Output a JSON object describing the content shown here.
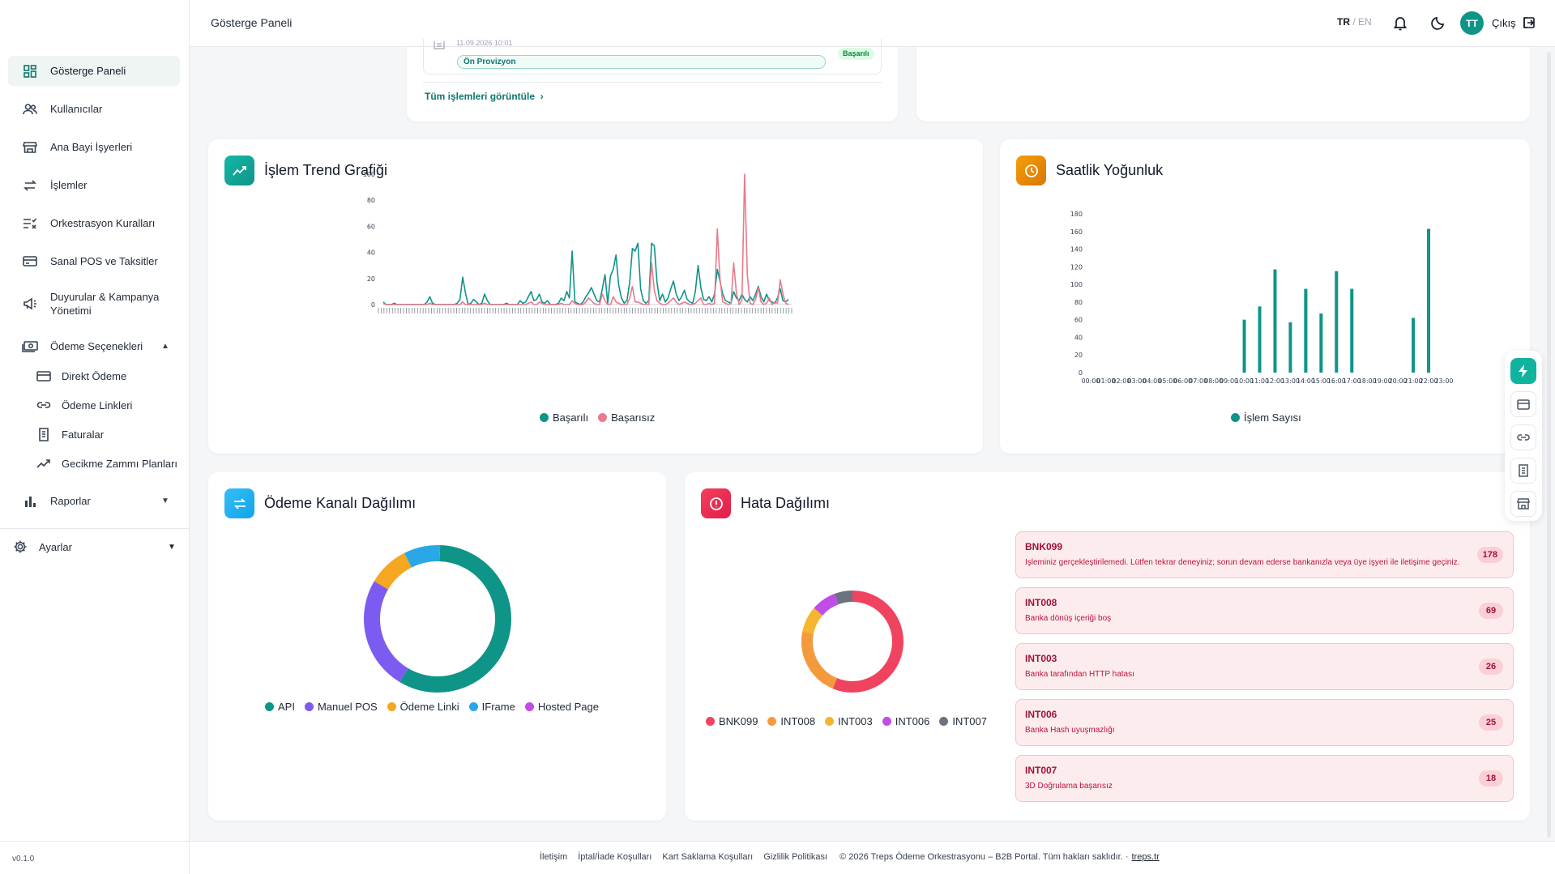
{
  "sidebar": {
    "items": [
      {
        "label": "Gösterge Paneli",
        "icon": "dashboard-icon"
      },
      {
        "label": "Kullanıcılar",
        "icon": "users-icon"
      },
      {
        "label": "Ana Bayi İşyerleri",
        "icon": "store-icon"
      },
      {
        "label": "İşlemler",
        "icon": "swap-icon"
      },
      {
        "label": "Orkestrasyon Kuralları",
        "icon": "rules-icon"
      },
      {
        "label": "Sanal POS ve Taksitler",
        "icon": "card-icon"
      },
      {
        "label": "Duyurular & Kampanya Yönetimi",
        "icon": "megaphone-icon"
      },
      {
        "label": "Ödeme Seçenekleri",
        "icon": "payments-icon"
      }
    ],
    "sub_items": [
      {
        "label": "Direkt Ödeme",
        "icon": "card-icon"
      },
      {
        "label": "Ödeme Linkleri",
        "icon": "link-icon"
      },
      {
        "label": "Faturalar",
        "icon": "invoice-icon"
      },
      {
        "label": "Gecikme Zammı Planları",
        "icon": "trend-icon"
      }
    ],
    "reports_label": "Raporlar",
    "settings_label": "Ayarlar",
    "version": "v0.1.0"
  },
  "header": {
    "title": "Gösterge Paneli",
    "lang_active": "TR",
    "lang_sep": " / ",
    "lang_other": "EN",
    "avatar": "TT",
    "logout": "Çıkış"
  },
  "recent": {
    "date": "11.09.2026 10:01",
    "type": "Ön Provizyon",
    "status": "Başarılı",
    "view_all": "Tüm işlemleri görüntüle"
  },
  "cards": {
    "trend_title": "İşlem Trend Grafiği",
    "hourly_title": "Saatlik Yoğunluk",
    "channel_title": "Ödeme Kanalı Dağılımı",
    "error_title": "Hata Dağılımı"
  },
  "colors": {
    "teal": "#0f9488",
    "pink": "#e87b8c",
    "accent": "#10b3a0"
  },
  "chart_data": [
    {
      "type": "line",
      "title": "İşlem Trend Grafiği",
      "ylim": [
        0,
        100
      ],
      "yticks": [
        0,
        20,
        40,
        60,
        80,
        100
      ],
      "series": [
        {
          "name": "Başarılı",
          "color": "#0f9488",
          "values": [
            2,
            0,
            0,
            0,
            1,
            0,
            0,
            0,
            0,
            0,
            0,
            0,
            0,
            0,
            0,
            0,
            2,
            6,
            1,
            0,
            0,
            0,
            0,
            0,
            0,
            0,
            0,
            1,
            4,
            21,
            9,
            0,
            1,
            4,
            2,
            0,
            1,
            8,
            3,
            0,
            0,
            0,
            0,
            0,
            0,
            1,
            0,
            0,
            0,
            0,
            3,
            1,
            2,
            6,
            10,
            3,
            4,
            8,
            2,
            1,
            3,
            0,
            0,
            0,
            1,
            5,
            3,
            10,
            5,
            41,
            2,
            1,
            0,
            2,
            6,
            9,
            13,
            8,
            3,
            2,
            12,
            23,
            1,
            22,
            27,
            38,
            15,
            5,
            1,
            3,
            17,
            43,
            41,
            47,
            12,
            3,
            1,
            3,
            47,
            45,
            17,
            3,
            8,
            2,
            5,
            12,
            18,
            8,
            3,
            6,
            11,
            4,
            2,
            1,
            10,
            30,
            13,
            4,
            3,
            6,
            2,
            8,
            27,
            18,
            8,
            3,
            2,
            1,
            10,
            5,
            3,
            8,
            4,
            2,
            6,
            3,
            8,
            14,
            6,
            2,
            8,
            3,
            2,
            1,
            5,
            12,
            3,
            2,
            4
          ]
        },
        {
          "name": "Başarısız",
          "color": "#e87b8c",
          "values": [
            1,
            0,
            0,
            0,
            0,
            0,
            0,
            0,
            0,
            0,
            0,
            0,
            0,
            0,
            0,
            0,
            0,
            1,
            0,
            0,
            0,
            0,
            0,
            0,
            0,
            0,
            0,
            0,
            0,
            2,
            0,
            0,
            0,
            0,
            0,
            0,
            0,
            1,
            0,
            0,
            0,
            0,
            0,
            0,
            0,
            0,
            0,
            0,
            0,
            0,
            0,
            0,
            0,
            1,
            2,
            0,
            0,
            2,
            1,
            0,
            0,
            0,
            0,
            0,
            0,
            1,
            0,
            0,
            0,
            3,
            1,
            0,
            0,
            0,
            2,
            5,
            3,
            1,
            0,
            0,
            8,
            3,
            0,
            0,
            6,
            2,
            1,
            0,
            0,
            0,
            5,
            14,
            2,
            2,
            1,
            0,
            0,
            0,
            32,
            11,
            3,
            1,
            0,
            0,
            1,
            3,
            5,
            2,
            0,
            1,
            2,
            1,
            0,
            0,
            1,
            3,
            5,
            0,
            0,
            1,
            0,
            1,
            58,
            20,
            2,
            1,
            0,
            1,
            32,
            9,
            0,
            3,
            100,
            22,
            1,
            0,
            4,
            13,
            2,
            0,
            1,
            5,
            0,
            2,
            1,
            19,
            8,
            1,
            0
          ]
        }
      ]
    },
    {
      "type": "bar",
      "title": "Saatlik Yoğunluk",
      "ylim": [
        0,
        180
      ],
      "yticks": [
        0,
        20,
        40,
        60,
        80,
        100,
        120,
        140,
        160,
        180
      ],
      "categories": [
        "00:00",
        "01:00",
        "02:00",
        "03:00",
        "04:00",
        "05:00",
        "06:00",
        "07:00",
        "08:00",
        "09:00",
        "10:00",
        "11:00",
        "12:00",
        "13:00",
        "14:00",
        "15:00",
        "16:00",
        "17:00",
        "18:00",
        "19:00",
        "20:00",
        "21:00",
        "22:00",
        "23:00"
      ],
      "series": [
        {
          "name": "İşlem Sayısı",
          "color": "#0f9488",
          "values": [
            0,
            0,
            0,
            0,
            0,
            0,
            0,
            0,
            0,
            0,
            60,
            75,
            117,
            57,
            95,
            67,
            115,
            95,
            0,
            0,
            0,
            62,
            163,
            0
          ]
        }
      ]
    },
    {
      "type": "pie",
      "title": "Ödeme Kanalı Dağılımı",
      "labels": [
        "API",
        "Manuel POS",
        "Ödeme Linki",
        "IFrame",
        "Hosted Page"
      ],
      "values": [
        58,
        25,
        9,
        8,
        0
      ],
      "colors": [
        "#0f9488",
        "#7c5cf0",
        "#f5a623",
        "#2aa7e6",
        "#c04de8"
      ]
    },
    {
      "type": "pie",
      "title": "Hata Dağılımı",
      "labels": [
        "BNK099",
        "INT008",
        "INT003",
        "INT006",
        "INT007"
      ],
      "values": [
        178,
        69,
        26,
        25,
        18
      ],
      "colors": [
        "#f0435f",
        "#f59a3c",
        "#f5b52e",
        "#c04de8",
        "#6b7280"
      ]
    }
  ],
  "errors": [
    {
      "code": "BNK099",
      "desc": "İşleminiz gerçekleştirilemedi. Lütfen tekrar deneyiniz; sorun devam ederse bankanızla veya üye işyeri ile iletişime geçiniz.",
      "count": "178"
    },
    {
      "code": "INT008",
      "desc": "Banka dönüş içeriği boş",
      "count": "69"
    },
    {
      "code": "INT003",
      "desc": "Banka tarafından HTTP hatası",
      "count": "26"
    },
    {
      "code": "INT006",
      "desc": "Banka Hash uyuşmazlığı",
      "count": "25"
    },
    {
      "code": "INT007",
      "desc": "3D Doğrulama başarısız",
      "count": "18"
    }
  ],
  "footer": {
    "links": [
      "İletişim",
      "İptal/İade Koşulları",
      "Kart Saklama Koşulları",
      "Gizlilik Politikası"
    ],
    "copyright": "© 2026 Treps Ödeme Orkestrasyonu – B2B Portal. Tüm hakları saklıdır. ·",
    "site": "treps.tr"
  }
}
